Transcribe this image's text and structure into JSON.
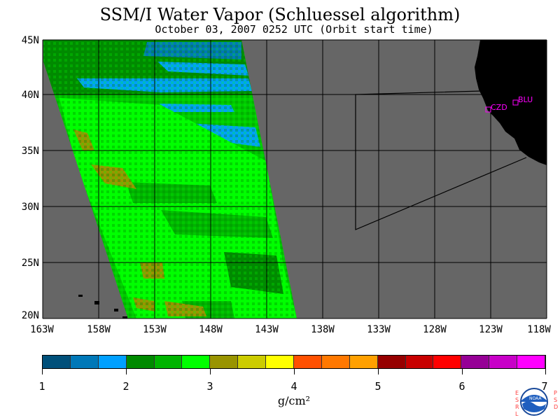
{
  "title": "SSM/I Water Vapor (Schluessel algorithm)",
  "subtitle": "October 03, 2007  0252 UTC  (Orbit start time)",
  "latitude_labels": [
    "45N",
    "40N",
    "35N",
    "30N",
    "25N",
    "20N"
  ],
  "longitude_labels": [
    "163W",
    "158W",
    "153W",
    "148W",
    "143W",
    "138W",
    "133W",
    "128W",
    "123W",
    "118W"
  ],
  "stations": [
    {
      "name": "CZD",
      "lon": -123.3,
      "lat": 38.6
    },
    {
      "name": "BLU",
      "lon": -120.9,
      "lat": 39.3
    }
  ],
  "colorbar": {
    "labels": [
      "1",
      "2",
      "3",
      "4",
      "5",
      "6",
      "7"
    ],
    "units": "g/cm²",
    "colors": [
      "#00507a",
      "#0078b8",
      "#00a0ff",
      "#008a00",
      "#00b400",
      "#00ff00",
      "#999400",
      "#cccc00",
      "#ffff00",
      "#ff5000",
      "#ff7800",
      "#ffa000",
      "#960000",
      "#c80000",
      "#ff0000",
      "#960096",
      "#c800c8",
      "#ff00ff"
    ]
  },
  "logo": {
    "agency": "NOAA",
    "left_text": "ESRL",
    "right_text": "PSD"
  },
  "colors": {
    "ocean_no_data": "#666666",
    "land": "#000000",
    "station": "#ff00ff"
  }
}
